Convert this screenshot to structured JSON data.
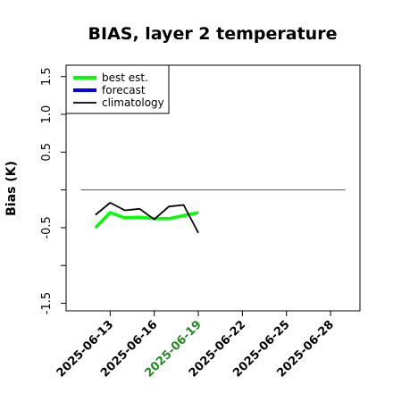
{
  "chart_data": {
    "type": "line",
    "title": "BIAS, layer 2 temperature",
    "xlabel": "",
    "ylabel": "Bias (K)",
    "xlim": [
      "2025-06-10",
      "2025-06-30"
    ],
    "ylim": [
      -1.6,
      1.65
    ],
    "yticks": [
      -1.5,
      -1.0,
      -0.5,
      0.0,
      0.5,
      1.0,
      1.5
    ],
    "ytick_labels": [
      "-1.5",
      "",
      "-0.5",
      "",
      "0.5",
      "1.0",
      "1.5"
    ],
    "xticks": [
      "2025-06-13",
      "2025-06-16",
      "2025-06-19",
      "2025-06-22",
      "2025-06-25",
      "2025-06-28"
    ],
    "xtick_labels": [
      "2025-06-13",
      "2025-06-16",
      "2025-06-19",
      "2025-06-22",
      "2025-06-25",
      "2025-06-28"
    ],
    "xtick_colors": [
      "#000000",
      "#000000",
      "#228B22",
      "#000000",
      "#000000",
      "#000000"
    ],
    "hline": {
      "y": 0.0,
      "color": "#555555"
    },
    "legend_position": "top-left",
    "grid": false,
    "series": [
      {
        "name": "best est.",
        "color": "#00ff00",
        "x": [
          "2025-06-12",
          "2025-06-13",
          "2025-06-14",
          "2025-06-15",
          "2025-06-16",
          "2025-06-17",
          "2025-06-18",
          "2025-06-19"
        ],
        "values": [
          -0.5,
          -0.3,
          -0.37,
          -0.36,
          -0.38,
          -0.38,
          -0.34,
          -0.3
        ]
      },
      {
        "name": "forecast",
        "color": "#0000ff",
        "x": [],
        "values": []
      },
      {
        "name": "climatology",
        "color": "#000000",
        "x": [
          "2025-06-12",
          "2025-06-13",
          "2025-06-14",
          "2025-06-15",
          "2025-06-16",
          "2025-06-17",
          "2025-06-18",
          "2025-06-19"
        ],
        "values": [
          -0.33,
          -0.17,
          -0.27,
          -0.25,
          -0.39,
          -0.22,
          -0.2,
          -0.57
        ]
      }
    ]
  }
}
